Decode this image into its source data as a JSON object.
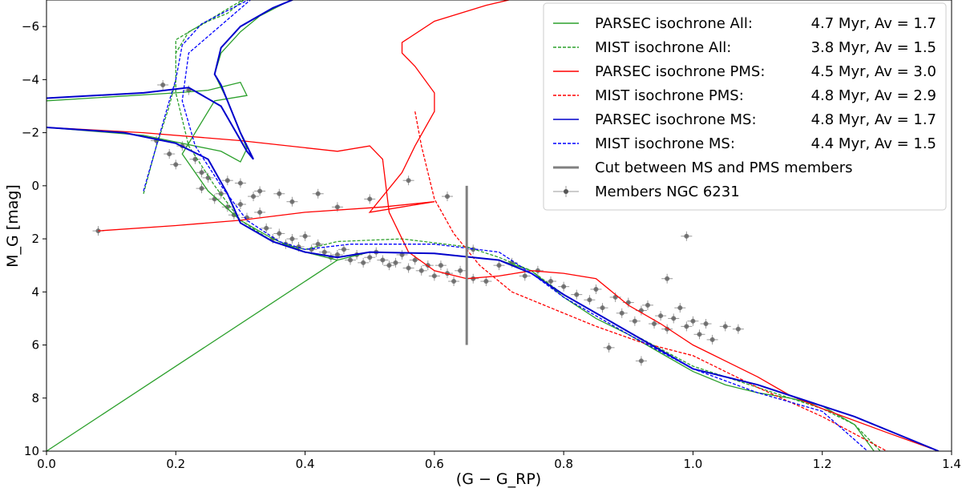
{
  "chart_data": {
    "type": "line",
    "title": "",
    "xlabel": "(G − G_RP)",
    "ylabel": "M_G [mag]",
    "xlim": [
      0.0,
      1.4
    ],
    "ylim": [
      10,
      -7
    ],
    "x_ticks": [
      "0.0",
      "0.2",
      "0.4",
      "0.6",
      "0.8",
      "1.0",
      "1.2",
      "1.4"
    ],
    "y_ticks": [
      "10",
      "8",
      "6",
      "4",
      "2",
      "0",
      "−2",
      "−4",
      "−6"
    ],
    "x_tick_values": [
      0.0,
      0.2,
      0.4,
      0.6,
      0.8,
      1.0,
      1.2,
      1.4
    ],
    "y_tick_values": [
      10,
      8,
      6,
      4,
      2,
      0,
      -2,
      -4,
      -6
    ],
    "legend_position": "top-right",
    "legend": [
      {
        "label": "PARSEC isochrone All:",
        "value": "4.7 Myr, Av = 1.7",
        "color": "#2ca02c",
        "style": "solid"
      },
      {
        "label": "MIST isochrone All:",
        "value": "3.8 Myr, Av = 1.5",
        "color": "#2ca02c",
        "style": "dashed"
      },
      {
        "label": "PARSEC isochrone PMS:",
        "value": "4.5 Myr, Av = 3.0",
        "color": "#ff0000",
        "style": "solid"
      },
      {
        "label": "MIST isochrone PMS:",
        "value": "4.8 Myr, Av = 2.9",
        "color": "#ff0000",
        "style": "dashed"
      },
      {
        "label": "PARSEC isochrone MS:",
        "value": "4.8 Myr, Av = 1.7",
        "color": "#0000cc",
        "style": "solid"
      },
      {
        "label": "MIST isochrone MS:",
        "value": "4.4 Myr, Av = 1.5",
        "color": "#0000ff",
        "style": "dashed"
      },
      {
        "label": "Cut between MS and PMS members",
        "value": "",
        "color": "#808080",
        "style": "thick"
      },
      {
        "label": "Members NGC 6231",
        "value": "",
        "color": "#666666",
        "style": "errorbar"
      }
    ],
    "cut_line": {
      "x": 0.65,
      "y_range": [
        0,
        6
      ]
    },
    "series": [
      {
        "name": "PARSEC isochrone All",
        "color": "#2ca02c",
        "style": "solid",
        "points": [
          [
            0.0,
            10
          ],
          [
            0.45,
            2.8
          ],
          [
            0.5,
            2.5
          ],
          [
            0.6,
            2.55
          ],
          [
            0.7,
            2.8
          ],
          [
            0.75,
            3.2
          ],
          [
            0.8,
            4.2
          ],
          [
            0.85,
            5.0
          ],
          [
            0.9,
            5.6
          ],
          [
            0.95,
            6.3
          ],
          [
            1.0,
            7.0
          ],
          [
            1.05,
            7.5
          ],
          [
            1.1,
            7.8
          ],
          [
            1.15,
            8.0
          ],
          [
            1.2,
            8.3
          ],
          [
            1.25,
            9.0
          ],
          [
            1.28,
            10
          ]
        ]
      },
      {
        "name": "PARSEC isochrone All (upper)",
        "color": "#2ca02c",
        "style": "solid",
        "points": [
          [
            0.0,
            -3.2
          ],
          [
            0.2,
            -3.5
          ],
          [
            0.25,
            -3.6
          ],
          [
            0.3,
            -3.9
          ],
          [
            0.31,
            -3.4
          ],
          [
            0.26,
            -3.2
          ],
          [
            0.21,
            -1.2
          ],
          [
            0.25,
            0.2
          ],
          [
            0.3,
            1.3
          ],
          [
            0.35,
            2.0
          ],
          [
            0.4,
            2.5
          ],
          [
            0.45,
            2.8
          ]
        ]
      },
      {
        "name": "PARSEC isochrone All (bright branch)",
        "color": "#2ca02c",
        "style": "solid",
        "points": [
          [
            0.0,
            -2.2
          ],
          [
            0.15,
            -1.9
          ],
          [
            0.27,
            -1.3
          ],
          [
            0.3,
            -0.9
          ],
          [
            0.31,
            -1.4
          ],
          [
            0.28,
            -3.2
          ],
          [
            0.26,
            -4.2
          ],
          [
            0.27,
            -5.0
          ],
          [
            0.3,
            -5.8
          ],
          [
            0.33,
            -6.4
          ],
          [
            0.37,
            -6.9
          ],
          [
            0.4,
            -7.2
          ]
        ]
      },
      {
        "name": "MIST isochrone All",
        "color": "#2ca02c",
        "style": "dashed",
        "points": [
          [
            0.15,
            0.3
          ],
          [
            0.17,
            -1.5
          ],
          [
            0.19,
            -3.0
          ],
          [
            0.2,
            -4.0
          ],
          [
            0.2,
            -5.0
          ],
          [
            0.22,
            -5.8
          ],
          [
            0.25,
            -6.2
          ],
          [
            0.28,
            -6.5
          ],
          [
            0.31,
            -7.1
          ],
          [
            0.2,
            -5.5
          ],
          [
            0.2,
            -3.5
          ],
          [
            0.22,
            -1.5
          ],
          [
            0.26,
            0.0
          ],
          [
            0.3,
            1.3
          ],
          [
            0.35,
            2.1
          ],
          [
            0.4,
            2.4
          ],
          [
            0.45,
            2.1
          ],
          [
            0.55,
            2.0
          ],
          [
            0.65,
            2.3
          ],
          [
            0.7,
            2.7
          ],
          [
            0.75,
            3.2
          ],
          [
            0.8,
            4.1
          ],
          [
            0.9,
            5.5
          ],
          [
            1.0,
            6.8
          ],
          [
            1.1,
            7.6
          ],
          [
            1.2,
            8.4
          ],
          [
            1.25,
            9.0
          ],
          [
            1.29,
            10
          ]
        ]
      },
      {
        "name": "PARSEC isochrone PMS",
        "color": "#ff0000",
        "style": "solid",
        "points": [
          [
            0.08,
            1.7
          ],
          [
            0.2,
            1.5
          ],
          [
            0.3,
            1.3
          ],
          [
            0.4,
            1.0
          ],
          [
            0.52,
            0.8
          ],
          [
            0.6,
            0.6
          ],
          [
            0.5,
            1.0
          ],
          [
            0.55,
            -0.5
          ],
          [
            0.57,
            -1.5
          ],
          [
            0.6,
            -2.8
          ],
          [
            0.6,
            -3.5
          ],
          [
            0.57,
            -4.5
          ],
          [
            0.55,
            -5.0
          ],
          [
            0.55,
            -5.4
          ],
          [
            0.6,
            -6.2
          ],
          [
            0.68,
            -6.8
          ],
          [
            0.75,
            -7.2
          ]
        ]
      },
      {
        "name": "PARSEC isochrone PMS (lower)",
        "color": "#ff0000",
        "style": "solid",
        "points": [
          [
            0.0,
            -2.2
          ],
          [
            0.15,
            -2.0
          ],
          [
            0.3,
            -1.7
          ],
          [
            0.45,
            -1.3
          ],
          [
            0.5,
            -1.5
          ],
          [
            0.52,
            -1.0
          ],
          [
            0.53,
            1.0
          ],
          [
            0.56,
            2.5
          ],
          [
            0.6,
            3.2
          ],
          [
            0.65,
            3.5
          ],
          [
            0.7,
            3.4
          ],
          [
            0.75,
            3.2
          ],
          [
            0.8,
            3.3
          ],
          [
            0.85,
            3.5
          ],
          [
            0.9,
            4.5
          ],
          [
            0.95,
            5.2
          ],
          [
            1.0,
            6.0
          ],
          [
            1.05,
            6.6
          ],
          [
            1.1,
            7.2
          ],
          [
            1.15,
            7.9
          ],
          [
            1.2,
            8.4
          ],
          [
            1.3,
            9.3
          ],
          [
            1.38,
            10
          ]
        ]
      },
      {
        "name": "MIST isochrone PMS",
        "color": "#ff0000",
        "style": "dashed",
        "points": [
          [
            0.57,
            -2.8
          ],
          [
            0.58,
            -1.5
          ],
          [
            0.6,
            0.5
          ],
          [
            0.63,
            1.8
          ],
          [
            0.67,
            3.0
          ],
          [
            0.72,
            4.0
          ],
          [
            0.78,
            4.6
          ],
          [
            0.85,
            5.3
          ],
          [
            0.92,
            5.9
          ],
          [
            1.0,
            6.4
          ],
          [
            1.1,
            7.6
          ],
          [
            1.2,
            8.7
          ],
          [
            1.3,
            10
          ]
        ]
      },
      {
        "name": "PARSEC isochrone MS",
        "color": "#0000cc",
        "style": "solid",
        "points": [
          [
            0.0,
            -2.2
          ],
          [
            0.12,
            -2.0
          ],
          [
            0.2,
            -1.6
          ],
          [
            0.25,
            -1.0
          ],
          [
            0.28,
            0.3
          ],
          [
            0.3,
            1.4
          ],
          [
            0.35,
            2.1
          ],
          [
            0.4,
            2.5
          ],
          [
            0.45,
            2.7
          ],
          [
            0.5,
            2.5
          ],
          [
            0.6,
            2.55
          ],
          [
            0.7,
            2.8
          ],
          [
            0.75,
            3.3
          ],
          [
            0.8,
            4.1
          ],
          [
            0.85,
            4.8
          ],
          [
            0.9,
            5.5
          ],
          [
            1.0,
            6.9
          ],
          [
            1.1,
            7.5
          ],
          [
            1.15,
            7.9
          ],
          [
            1.25,
            8.7
          ],
          [
            1.38,
            10
          ]
        ]
      },
      {
        "name": "PARSEC isochrone MS (upper)",
        "color": "#0000cc",
        "style": "solid",
        "points": [
          [
            0.0,
            -3.3
          ],
          [
            0.15,
            -3.5
          ],
          [
            0.22,
            -3.7
          ],
          [
            0.27,
            -3.0
          ],
          [
            0.31,
            -1.3
          ],
          [
            0.32,
            -1.0
          ],
          [
            0.3,
            -2.0
          ],
          [
            0.27,
            -3.8
          ],
          [
            0.26,
            -4.2
          ],
          [
            0.27,
            -5.2
          ],
          [
            0.3,
            -6.0
          ],
          [
            0.35,
            -6.7
          ],
          [
            0.4,
            -7.2
          ]
        ]
      },
      {
        "name": "MIST isochrone MS",
        "color": "#0000ff",
        "style": "dashed",
        "points": [
          [
            0.15,
            0.2
          ],
          [
            0.17,
            -1.5
          ],
          [
            0.19,
            -3.2
          ],
          [
            0.2,
            -4.0
          ],
          [
            0.21,
            -5.3
          ],
          [
            0.24,
            -6.1
          ],
          [
            0.28,
            -6.6
          ],
          [
            0.32,
            -7.1
          ],
          [
            0.22,
            -5.0
          ],
          [
            0.21,
            -3.2
          ],
          [
            0.23,
            -1.5
          ],
          [
            0.27,
            0.0
          ],
          [
            0.31,
            1.3
          ],
          [
            0.36,
            2.1
          ],
          [
            0.4,
            2.4
          ],
          [
            0.47,
            2.2
          ],
          [
            0.6,
            2.2
          ],
          [
            0.7,
            2.5
          ],
          [
            0.75,
            3.3
          ],
          [
            0.8,
            4.2
          ],
          [
            0.9,
            5.6
          ],
          [
            1.0,
            6.9
          ],
          [
            1.1,
            7.8
          ],
          [
            1.2,
            8.5
          ],
          [
            1.27,
            10
          ]
        ]
      }
    ],
    "members": [
      [
        0.08,
        1.7
      ],
      [
        0.17,
        -1.7
      ],
      [
        0.18,
        -3.8
      ],
      [
        0.19,
        -1.2
      ],
      [
        0.2,
        -0.8
      ],
      [
        0.21,
        -1.5
      ],
      [
        0.22,
        -3.6
      ],
      [
        0.23,
        -1.0
      ],
      [
        0.24,
        -0.5
      ],
      [
        0.25,
        -0.3
      ],
      [
        0.24,
        0.1
      ],
      [
        0.26,
        0.5
      ],
      [
        0.27,
        0.3
      ],
      [
        0.28,
        0.8
      ],
      [
        0.29,
        1.1
      ],
      [
        0.3,
        0.7
      ],
      [
        0.31,
        1.2
      ],
      [
        0.32,
        0.4
      ],
      [
        0.33,
        1.0
      ],
      [
        0.34,
        1.6
      ],
      [
        0.35,
        2.0
      ],
      [
        0.36,
        1.8
      ],
      [
        0.37,
        2.2
      ],
      [
        0.38,
        2.0
      ],
      [
        0.39,
        2.3
      ],
      [
        0.4,
        1.9
      ],
      [
        0.41,
        2.4
      ],
      [
        0.42,
        2.2
      ],
      [
        0.43,
        2.5
      ],
      [
        0.44,
        2.7
      ],
      [
        0.45,
        2.6
      ],
      [
        0.46,
        2.4
      ],
      [
        0.47,
        2.8
      ],
      [
        0.48,
        2.6
      ],
      [
        0.49,
        2.9
      ],
      [
        0.5,
        2.7
      ],
      [
        0.51,
        2.5
      ],
      [
        0.52,
        2.8
      ],
      [
        0.53,
        3.0
      ],
      [
        0.54,
        2.9
      ],
      [
        0.55,
        2.6
      ],
      [
        0.56,
        3.1
      ],
      [
        0.57,
        2.8
      ],
      [
        0.58,
        3.2
      ],
      [
        0.59,
        3.0
      ],
      [
        0.6,
        3.4
      ],
      [
        0.61,
        3.0
      ],
      [
        0.62,
        3.3
      ],
      [
        0.63,
        3.6
      ],
      [
        0.64,
        3.2
      ],
      [
        0.66,
        3.5
      ],
      [
        0.68,
        3.6
      ],
      [
        0.7,
        3.0
      ],
      [
        0.72,
        2.9
      ],
      [
        0.74,
        3.4
      ],
      [
        0.76,
        3.2
      ],
      [
        0.78,
        3.6
      ],
      [
        0.8,
        3.8
      ],
      [
        0.82,
        4.1
      ],
      [
        0.84,
        4.3
      ],
      [
        0.85,
        3.9
      ],
      [
        0.86,
        4.6
      ],
      [
        0.88,
        4.2
      ],
      [
        0.89,
        4.8
      ],
      [
        0.9,
        4.4
      ],
      [
        0.91,
        5.1
      ],
      [
        0.92,
        4.7
      ],
      [
        0.93,
        4.5
      ],
      [
        0.94,
        5.2
      ],
      [
        0.95,
        4.9
      ],
      [
        0.96,
        5.4
      ],
      [
        0.97,
        5.0
      ],
      [
        0.98,
        4.6
      ],
      [
        0.99,
        5.3
      ],
      [
        1.0,
        5.1
      ],
      [
        1.01,
        5.6
      ],
      [
        1.02,
        5.2
      ],
      [
        1.03,
        5.8
      ],
      [
        1.05,
        5.3
      ],
      [
        1.07,
        5.4
      ],
      [
        0.99,
        1.9
      ],
      [
        0.96,
        3.5
      ],
      [
        0.87,
        6.1
      ],
      [
        0.92,
        6.6
      ],
      [
        0.5,
        0.5
      ],
      [
        0.45,
        0.8
      ],
      [
        0.38,
        0.6
      ],
      [
        0.42,
        0.3
      ],
      [
        0.3,
        -0.1
      ],
      [
        0.28,
        -0.2
      ],
      [
        0.33,
        0.2
      ],
      [
        0.36,
        0.3
      ],
      [
        0.62,
        0.4
      ],
      [
        0.56,
        -0.2
      ],
      [
        0.66,
        2.4
      ]
    ]
  }
}
